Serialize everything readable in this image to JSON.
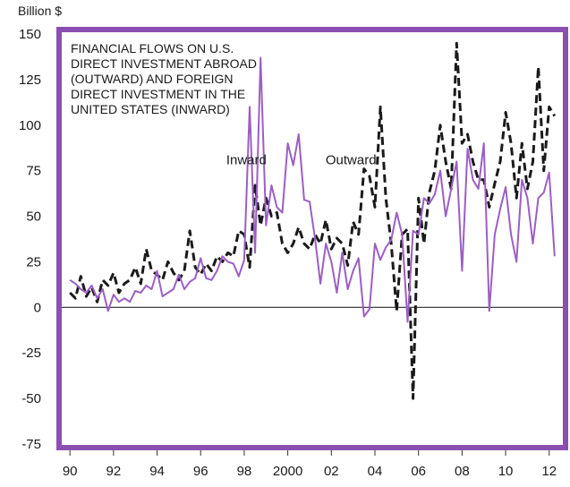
{
  "chart_data": {
    "type": "line",
    "title_lines": [
      "FINANCIAL FLOWS ON U.S.",
      "DIRECT INVESTMENT ABROAD",
      "(OUTWARD) AND FOREIGN",
      "DIRECT INVESTMENT IN THE",
      "UNITED STATES (INWARD)"
    ],
    "ylabel": "Billion $",
    "ylim": [
      -75,
      150
    ],
    "yticks": [
      150,
      125,
      100,
      75,
      50,
      25,
      0,
      -25,
      -50,
      -75
    ],
    "xlim": [
      1989.5,
      2012.75
    ],
    "xticks": [
      {
        "value": 1990,
        "label": "90"
      },
      {
        "value": 1992,
        "label": "92"
      },
      {
        "value": 1994,
        "label": "94"
      },
      {
        "value": 1996,
        "label": "96"
      },
      {
        "value": 1998,
        "label": "98"
      },
      {
        "value": 2000,
        "label": "2000"
      },
      {
        "value": 2002,
        "label": "02"
      },
      {
        "value": 2004,
        "label": "04"
      },
      {
        "value": 2006,
        "label": "06"
      },
      {
        "value": 2008,
        "label": "08"
      },
      {
        "value": 2010,
        "label": "10"
      },
      {
        "value": 2012,
        "label": "12"
      }
    ],
    "grid": false,
    "zero_line": true,
    "colors": {
      "frame": "#8a4fb0",
      "inward": "#9b5fc4",
      "outward": "#1a1a1a",
      "zero_line": "#2a2a2a"
    },
    "series": [
      {
        "name": "Inward",
        "style": "solid",
        "x": [
          1990.0,
          1990.25,
          1990.5,
          1990.75,
          1991.0,
          1991.25,
          1991.5,
          1991.75,
          1992.0,
          1992.25,
          1992.5,
          1992.75,
          1993.0,
          1993.25,
          1993.5,
          1993.75,
          1994.0,
          1994.25,
          1994.5,
          1994.75,
          1995.0,
          1995.25,
          1995.5,
          1995.75,
          1996.0,
          1996.25,
          1996.5,
          1996.75,
          1997.0,
          1997.25,
          1997.5,
          1997.75,
          1998.0,
          1998.25,
          1998.5,
          1998.75,
          1999.0,
          1999.25,
          1999.5,
          1999.75,
          2000.0,
          2000.25,
          2000.5,
          2000.75,
          2001.0,
          2001.25,
          2001.5,
          2001.75,
          2002.0,
          2002.25,
          2002.5,
          2002.75,
          2003.0,
          2003.25,
          2003.5,
          2003.75,
          2004.0,
          2004.25,
          2004.5,
          2004.75,
          2005.0,
          2005.25,
          2005.5,
          2005.75,
          2006.0,
          2006.25,
          2006.5,
          2006.75,
          2007.0,
          2007.25,
          2007.5,
          2007.75,
          2008.0,
          2008.25,
          2008.5,
          2008.75,
          2009.0,
          2009.25,
          2009.5,
          2009.75,
          2010.0,
          2010.25,
          2010.5,
          2010.75,
          2011.0,
          2011.25,
          2011.5,
          2011.75,
          2012.0,
          2012.25
        ],
        "values": [
          15,
          13,
          10,
          8,
          12,
          5,
          10,
          -2,
          7,
          3,
          5,
          3,
          9,
          8,
          12,
          10,
          20,
          6,
          8,
          10,
          18,
          10,
          14,
          16,
          27,
          16,
          15,
          20,
          28,
          25,
          24,
          17,
          26,
          110,
          30,
          137,
          45,
          67,
          55,
          52,
          90,
          78,
          95,
          59,
          58,
          38,
          13,
          35,
          25,
          8,
          30,
          10,
          20,
          27,
          -5,
          -1,
          35,
          26,
          33,
          37,
          52,
          40,
          -8,
          42,
          40,
          60,
          57,
          62,
          75,
          50,
          65,
          80,
          20,
          87,
          70,
          65,
          90,
          -2,
          40,
          54,
          66,
          40,
          25,
          70,
          60,
          35,
          60,
          63,
          74,
          28
        ]
      },
      {
        "name": "Outward",
        "style": "dashed",
        "x": [
          1990.0,
          1990.25,
          1990.5,
          1990.75,
          1991.0,
          1991.25,
          1991.5,
          1991.75,
          1992.0,
          1992.25,
          1992.5,
          1992.75,
          1993.0,
          1993.25,
          1993.5,
          1993.75,
          1994.0,
          1994.25,
          1994.5,
          1994.75,
          1995.0,
          1995.25,
          1995.5,
          1995.75,
          1996.0,
          1996.25,
          1996.5,
          1996.75,
          1997.0,
          1997.25,
          1997.5,
          1997.75,
          1998.0,
          1998.25,
          1998.5,
          1998.75,
          1999.0,
          1999.25,
          1999.5,
          1999.75,
          2000.0,
          2000.25,
          2000.5,
          2000.75,
          2001.0,
          2001.25,
          2001.5,
          2001.75,
          2002.0,
          2002.25,
          2002.5,
          2002.75,
          2003.0,
          2003.25,
          2003.5,
          2003.75,
          2004.0,
          2004.25,
          2004.5,
          2004.75,
          2005.0,
          2005.25,
          2005.5,
          2005.75,
          2006.0,
          2006.25,
          2006.5,
          2006.75,
          2007.0,
          2007.25,
          2007.5,
          2007.75,
          2008.0,
          2008.25,
          2008.5,
          2008.75,
          2009.0,
          2009.25,
          2009.5,
          2009.75,
          2010.0,
          2010.25,
          2010.5,
          2010.75,
          2011.0,
          2011.25,
          2011.5,
          2011.75,
          2012.0,
          2012.25
        ],
        "values": [
          8,
          5,
          17,
          6,
          11,
          3,
          15,
          12,
          19,
          8,
          13,
          15,
          22,
          13,
          32,
          20,
          18,
          15,
          25,
          19,
          15,
          20,
          42,
          22,
          18,
          24,
          20,
          28,
          25,
          30,
          28,
          42,
          40,
          22,
          67,
          45,
          60,
          50,
          52,
          35,
          30,
          35,
          44,
          35,
          32,
          40,
          35,
          48,
          32,
          38,
          35,
          23,
          47,
          40,
          76,
          72,
          55,
          110,
          60,
          35,
          -2,
          40,
          43,
          -50,
          60,
          35,
          63,
          75,
          100,
          80,
          65,
          145,
          90,
          95,
          80,
          70,
          70,
          55,
          68,
          80,
          107,
          90,
          60,
          90,
          65,
          80,
          132,
          75,
          110,
          105
        ]
      }
    ],
    "annotations": [
      {
        "text": "Inward",
        "x": 1998.1,
        "y": 81
      },
      {
        "text": "Outward",
        "x": 2002.9,
        "y": 81
      }
    ]
  }
}
